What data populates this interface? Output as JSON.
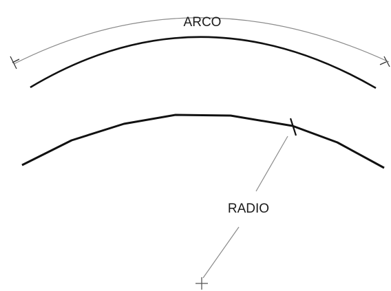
{
  "diagram": {
    "arc_label": "ARCO",
    "radius_label": "RADIO",
    "colors": {
      "thin_line": "#8a8a8a",
      "thick_line": "#111111",
      "text": "#1a1a1a"
    }
  }
}
